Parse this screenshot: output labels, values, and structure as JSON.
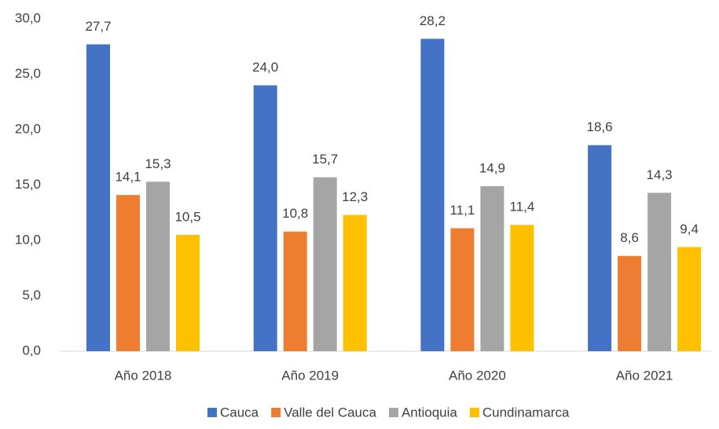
{
  "chart_data": {
    "type": "bar",
    "categories": [
      "Año 2018",
      "Año 2019",
      "Año 2020",
      "Año 2021"
    ],
    "series": [
      {
        "name": "Cauca",
        "color": "#4472c4",
        "values": [
          27.7,
          24.0,
          28.2,
          18.6
        ],
        "value_labels": [
          "27,7",
          "24,0",
          "28,2",
          "18,6"
        ]
      },
      {
        "name": "Valle del Cauca",
        "color": "#ed7d31",
        "values": [
          14.1,
          10.8,
          11.1,
          8.6
        ],
        "value_labels": [
          "14,1",
          "10,8",
          "11,1",
          "8,6"
        ]
      },
      {
        "name": "Antioquia",
        "color": "#a5a5a5",
        "values": [
          15.3,
          15.7,
          14.9,
          14.3
        ],
        "value_labels": [
          "15,3",
          "15,7",
          "14,9",
          "14,3"
        ]
      },
      {
        "name": "Cundinamarca",
        "color": "#ffc000",
        "values": [
          10.5,
          12.3,
          11.4,
          9.4
        ],
        "value_labels": [
          "10,5",
          "12,3",
          "11,4",
          "9,4"
        ]
      }
    ],
    "ylim": [
      0,
      30
    ],
    "yticks": [
      {
        "value": 0,
        "label": "0,0"
      },
      {
        "value": 5,
        "label": "5,0"
      },
      {
        "value": 10,
        "label": "10,0"
      },
      {
        "value": 15,
        "label": "15,0"
      },
      {
        "value": 20,
        "label": "20,0"
      },
      {
        "value": 25,
        "label": "25,0"
      },
      {
        "value": 30,
        "label": "30,0"
      }
    ],
    "grid": false,
    "legend": "bottom"
  }
}
